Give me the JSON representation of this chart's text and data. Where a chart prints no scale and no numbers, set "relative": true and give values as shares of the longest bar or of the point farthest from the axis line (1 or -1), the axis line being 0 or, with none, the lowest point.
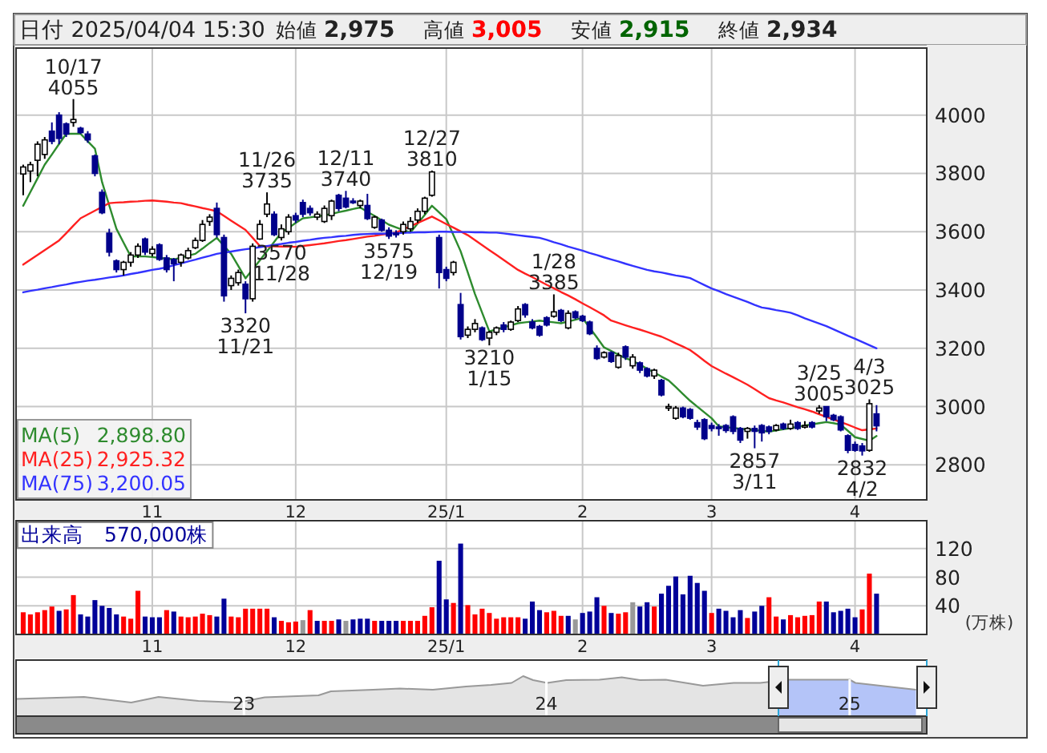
{
  "chart_data": [
    {
      "type": "candlestick",
      "title": "日付 2025/04/04 15:30",
      "categories": [
        null,
        null,
        null,
        null,
        null,
        null,
        null,
        null,
        null,
        null,
        null,
        null,
        null,
        null,
        null,
        null,
        null,
        null,
        "11",
        null,
        null,
        null,
        null,
        null,
        null,
        null,
        null,
        null,
        null,
        null,
        null,
        null,
        null,
        null,
        null,
        null,
        null,
        null,
        "12",
        null,
        null,
        null,
        null,
        null,
        null,
        null,
        null,
        null,
        null,
        null,
        null,
        null,
        null,
        null,
        null,
        null,
        null,
        null,
        null,
        "25/1",
        null,
        null,
        null,
        null,
        null,
        null,
        null,
        null,
        null,
        null,
        null,
        null,
        null,
        null,
        null,
        null,
        null,
        null,
        "2",
        null,
        null,
        null,
        null,
        null,
        null,
        null,
        null,
        null,
        null,
        null,
        null,
        null,
        null,
        null,
        null,
        null,
        "3",
        null,
        null,
        null,
        null,
        null,
        null,
        null,
        null,
        null,
        null,
        null,
        null,
        null,
        null,
        null,
        null,
        null,
        null,
        null,
        "4",
        null,
        null,
        null
      ],
      "ohlc": [
        [
          3798,
          3830,
          3725,
          3822
        ],
        [
          3808,
          3840,
          3770,
          3830
        ],
        [
          3845,
          3910,
          3790,
          3900
        ],
        [
          3865,
          3925,
          3850,
          3915
        ],
        [
          3945,
          3975,
          3900,
          3910
        ],
        [
          4000,
          4010,
          3900,
          3920
        ],
        [
          3970,
          3975,
          3925,
          3935
        ],
        [
          3975,
          4055,
          3960,
          3985
        ],
        [
          3955,
          3960,
          3935,
          3940
        ],
        [
          3935,
          3945,
          3905,
          3915
        ],
        [
          3860,
          3865,
          3790,
          3800
        ],
        [
          3735,
          3745,
          3660,
          3665
        ],
        [
          3595,
          3610,
          3515,
          3530
        ],
        [
          3500,
          3505,
          3460,
          3470
        ],
        [
          3470,
          3500,
          3450,
          3495
        ],
        [
          3495,
          3530,
          3480,
          3520
        ],
        [
          3520,
          3560,
          3510,
          3550
        ],
        [
          3575,
          3580,
          3520,
          3530
        ],
        [
          3525,
          3550,
          3515,
          3540
        ],
        [
          3555,
          3560,
          3500,
          3505
        ],
        [
          3510,
          3520,
          3460,
          3470
        ],
        [
          3505,
          3510,
          3430,
          3490
        ],
        [
          3495,
          3525,
          3480,
          3520
        ],
        [
          3510,
          3545,
          3505,
          3535
        ],
        [
          3545,
          3580,
          3540,
          3570
        ],
        [
          3570,
          3640,
          3565,
          3625
        ],
        [
          3635,
          3660,
          3620,
          3650
        ],
        [
          3680,
          3700,
          3580,
          3590
        ],
        [
          3580,
          3590,
          3360,
          3380
        ],
        [
          3415,
          3450,
          3400,
          3440
        ],
        [
          3425,
          3470,
          3415,
          3460
        ],
        [
          3420,
          3430,
          3320,
          3370
        ],
        [
          3370,
          3560,
          3360,
          3550
        ],
        [
          3575,
          3640,
          3572,
          3625
        ],
        [
          3660,
          3735,
          3650,
          3695
        ],
        [
          3660,
          3670,
          3585,
          3590
        ],
        [
          3580,
          3625,
          3570,
          3610
        ],
        [
          3600,
          3660,
          3590,
          3650
        ],
        [
          3655,
          3665,
          3630,
          3640
        ],
        [
          3700,
          3710,
          3650,
          3660
        ],
        [
          3680,
          3690,
          3655,
          3665
        ],
        [
          3650,
          3670,
          3640,
          3660
        ],
        [
          3635,
          3690,
          3630,
          3680
        ],
        [
          3655,
          3710,
          3640,
          3705
        ],
        [
          3725,
          3730,
          3670,
          3680
        ],
        [
          3715,
          3740,
          3680,
          3685
        ],
        [
          3705,
          3715,
          3695,
          3700
        ],
        [
          3690,
          3710,
          3680,
          3705
        ],
        [
          3690,
          3730,
          3640,
          3645
        ],
        [
          3615,
          3655,
          3610,
          3650
        ],
        [
          3640,
          3645,
          3600,
          3605
        ],
        [
          3605,
          3615,
          3575,
          3585
        ],
        [
          3595,
          3605,
          3580,
          3590
        ],
        [
          3600,
          3635,
          3590,
          3625
        ],
        [
          3610,
          3650,
          3600,
          3635
        ],
        [
          3640,
          3680,
          3630,
          3670
        ],
        [
          3670,
          3720,
          3660,
          3715
        ],
        [
          3725,
          3810,
          3720,
          3805
        ],
        [
          3580,
          3590,
          3405,
          3460
        ],
        [
          3470,
          3480,
          3430,
          3440
        ],
        [
          3460,
          3500,
          3450,
          3495
        ],
        [
          3350,
          3390,
          3230,
          3240
        ],
        [
          3245,
          3275,
          3235,
          3265
        ],
        [
          3265,
          3300,
          3255,
          3285
        ],
        [
          3270,
          3275,
          3225,
          3230
        ],
        [
          3235,
          3260,
          3210,
          3255
        ],
        [
          3255,
          3275,
          3245,
          3270
        ],
        [
          3280,
          3290,
          3255,
          3265
        ],
        [
          3265,
          3295,
          3260,
          3290
        ],
        [
          3295,
          3345,
          3290,
          3335
        ],
        [
          3350,
          3355,
          3305,
          3315
        ],
        [
          3290,
          3300,
          3265,
          3270
        ],
        [
          3275,
          3280,
          3240,
          3245
        ],
        [
          3305,
          3310,
          3275,
          3280
        ],
        [
          3310,
          3385,
          3305,
          3325
        ],
        [
          3330,
          3335,
          3290,
          3295
        ],
        [
          3270,
          3330,
          3265,
          3320
        ],
        [
          3325,
          3330,
          3300,
          3305
        ],
        [
          3310,
          3315,
          3290,
          3295
        ],
        [
          3290,
          3295,
          3245,
          3250
        ],
        [
          3200,
          3210,
          3160,
          3165
        ],
        [
          3170,
          3190,
          3165,
          3185
        ],
        [
          3185,
          3190,
          3150,
          3155
        ],
        [
          3135,
          3185,
          3130,
          3175
        ],
        [
          3205,
          3210,
          3160,
          3170
        ],
        [
          3140,
          3180,
          3130,
          3170
        ],
        [
          3150,
          3155,
          3115,
          3125
        ],
        [
          3130,
          3135,
          3100,
          3105
        ],
        [
          3105,
          3130,
          3095,
          3125
        ],
        [
          3090,
          3095,
          3035,
          3040
        ],
        [
          2995,
          3010,
          2985,
          3000
        ],
        [
          2960,
          3002,
          2955,
          2995
        ],
        [
          2995,
          3000,
          2960,
          2965
        ],
        [
          2990,
          2995,
          2955,
          2960
        ],
        [
          2945,
          2955,
          2920,
          2930
        ],
        [
          2955,
          2960,
          2885,
          2890
        ],
        [
          2935,
          2945,
          2915,
          2925
        ],
        [
          2930,
          2940,
          2900,
          2928
        ],
        [
          2935,
          2940,
          2910,
          2918
        ],
        [
          2965,
          2970,
          2905,
          2915
        ],
        [
          2925,
          2930,
          2875,
          2885
        ],
        [
          2915,
          2930,
          2890,
          2925
        ],
        [
          2925,
          2935,
          2857,
          2915
        ],
        [
          2935,
          2940,
          2880,
          2910
        ],
        [
          2930,
          2935,
          2905,
          2915
        ],
        [
          2920,
          2940,
          2915,
          2935
        ],
        [
          2940,
          2945,
          2920,
          2925
        ],
        [
          2925,
          2955,
          2920,
          2940
        ],
        [
          2945,
          2950,
          2920,
          2925
        ],
        [
          2935,
          2950,
          2925,
          2935
        ],
        [
          2945,
          2950,
          2925,
          2930
        ],
        [
          2985,
          3005,
          2975,
          2995
        ],
        [
          3000,
          3000,
          2950,
          2965
        ],
        [
          2970,
          2975,
          2950,
          2955
        ],
        [
          2965,
          2970,
          2915,
          2920
        ],
        [
          2900,
          2905,
          2840,
          2850
        ],
        [
          2870,
          2880,
          2845,
          2850
        ],
        [
          2865,
          2875,
          2832,
          2848
        ],
        [
          2850,
          3025,
          2845,
          3010
        ],
        [
          2975,
          3005,
          2915,
          2934
        ]
      ],
      "series": [
        {
          "name": "MA(5)",
          "type": "line",
          "color": "#2e8b2e",
          "values": [
            3689,
            3736,
            3783,
            3830,
            3865,
            3901,
            3936,
            3936,
            3936,
            3910,
            3885,
            3770,
            3690,
            3610,
            3562,
            3515,
            3515,
            3515,
            3513,
            3510,
            3508,
            3505,
            3511,
            3518,
            3524,
            3542,
            3561,
            3579,
            3551,
            3524,
            3482,
            3440,
            3471,
            3502,
            3533,
            3565,
            3597,
            3613,
            3630,
            3646,
            3649,
            3653,
            3656,
            3661,
            3667,
            3672,
            3678,
            3683,
            3668,
            3654,
            3639,
            3624,
            3615,
            3606,
            3597,
            3628,
            3658,
            3689,
            3666,
            3643,
            3588,
            3533,
            3460,
            3386,
            3322,
            3258,
            3265,
            3272,
            3279,
            3286,
            3289,
            3292,
            3295,
            3292,
            3289,
            3286,
            3292,
            3298,
            3304,
            3270,
            3237,
            3203,
            3191,
            3178,
            3166,
            3157,
            3144,
            3130,
            3117,
            3103,
            3090,
            3067,
            3043,
            3020,
            3000,
            2980,
            2960,
            2932,
            2929,
            2927,
            2924,
            2922,
            2919,
            2917,
            2914,
            2918,
            2922,
            2926,
            2931,
            2935,
            2939,
            2943,
            2947,
            2943,
            2938,
            2917,
            2895,
            2889,
            2883,
            2899
          ]
        },
        {
          "name": "MA(25)",
          "type": "line",
          "color": "#ff2020",
          "values": [
            3487,
            3504,
            3520,
            3537,
            3553,
            3570,
            3595,
            3621,
            3646,
            3659,
            3672,
            3685,
            3698,
            3700,
            3701,
            3703,
            3704,
            3706,
            3707,
            3705,
            3703,
            3700,
            3698,
            3692,
            3687,
            3681,
            3676,
            3670,
            3654,
            3638,
            3622,
            3606,
            3579,
            3551,
            3550,
            3550,
            3549,
            3549,
            3548,
            3551,
            3554,
            3557,
            3560,
            3564,
            3568,
            3571,
            3575,
            3579,
            3583,
            3586,
            3590,
            3593,
            3597,
            3608,
            3619,
            3630,
            3641,
            3652,
            3639,
            3626,
            3614,
            3601,
            3588,
            3571,
            3554,
            3537,
            3520,
            3503,
            3486,
            3469,
            3456,
            3444,
            3431,
            3418,
            3406,
            3393,
            3381,
            3368,
            3354,
            3341,
            3327,
            3313,
            3295,
            3287,
            3279,
            3271,
            3264,
            3256,
            3248,
            3240,
            3229,
            3217,
            3206,
            3194,
            3176,
            3157,
            3139,
            3126,
            3113,
            3101,
            3088,
            3075,
            3060,
            3044,
            3029,
            3021,
            3014,
            3006,
            2998,
            2991,
            2983,
            2974,
            2965,
            2956,
            2947,
            2938,
            2928,
            2919,
            2922,
            2925
          ]
        },
        {
          "name": "MA(75)",
          "type": "line",
          "color": "#3333ff",
          "values": [
            3392,
            3397,
            3401,
            3406,
            3410,
            3415,
            3419,
            3424,
            3428,
            3432,
            3435,
            3439,
            3443,
            3446,
            3450,
            3455,
            3459,
            3464,
            3469,
            3473,
            3478,
            3485,
            3491,
            3498,
            3504,
            3511,
            3517,
            3524,
            3528,
            3532,
            3536,
            3540,
            3543,
            3547,
            3551,
            3555,
            3558,
            3562,
            3565,
            3569,
            3572,
            3576,
            3579,
            3581,
            3584,
            3586,
            3589,
            3591,
            3592,
            3593,
            3593,
            3594,
            3595,
            3596,
            3597,
            3598,
            3598,
            3599,
            3600,
            3600,
            3599,
            3599,
            3599,
            3598,
            3598,
            3597,
            3597,
            3594,
            3591,
            3588,
            3585,
            3582,
            3579,
            3572,
            3564,
            3557,
            3549,
            3542,
            3535,
            3527,
            3520,
            3512,
            3505,
            3498,
            3490,
            3483,
            3476,
            3469,
            3464,
            3460,
            3455,
            3450,
            3446,
            3441,
            3429,
            3417,
            3405,
            3396,
            3386,
            3377,
            3368,
            3359,
            3349,
            3340,
            3336,
            3331,
            3327,
            3322,
            3313,
            3303,
            3294,
            3285,
            3276,
            3265,
            3254,
            3243,
            3233,
            3222,
            3211,
            3200
          ]
        }
      ],
      "ylim": [
        2680,
        4230
      ],
      "yticks": [
        2800,
        3000,
        3200,
        3400,
        3600,
        3800,
        4000
      ],
      "grid": true,
      "legend": "bottom left",
      "annotations": [
        "始値 2,975",
        "高値 3,005",
        "安値 2,915",
        "終値 2,934",
        "2,898.80",
        "2,925.32",
        "3,200.05",
        {
          "text": "10/17\n4055",
          "y": 4055
        },
        {
          "text": "3320\n11/21",
          "y": 3320
        },
        {
          "text": "11/26\n3735",
          "y": 3735
        },
        {
          "text": "3570\n11/28",
          "y": 3570
        },
        {
          "text": "12/11\n3740",
          "y": 3740
        },
        {
          "text": "3575\n12/19",
          "y": 3575
        },
        {
          "text": "12/27\n3810",
          "y": 3810
        },
        {
          "text": "3210\n1/15",
          "y": 3210
        },
        {
          "text": "1/28\n3385",
          "y": 3385
        },
        {
          "text": "2857\n3/11",
          "y": 2857
        },
        {
          "text": "3/25\n3005",
          "y": 3005
        },
        {
          "text": "4/3\n3025",
          "y": 3025
        },
        {
          "text": "2832\n4/2",
          "y": 2832
        }
      ]
    },
    {
      "type": "bar",
      "title": "出来高　570,000株",
      "ylabel": "(万株)",
      "categories": [
        null,
        null,
        null,
        null,
        null,
        null,
        null,
        null,
        null,
        null,
        null,
        null,
        null,
        null,
        null,
        null,
        null,
        null,
        "11",
        null,
        null,
        null,
        null,
        null,
        null,
        null,
        null,
        null,
        null,
        null,
        null,
        null,
        null,
        null,
        null,
        null,
        null,
        null,
        "12",
        null,
        null,
        null,
        null,
        null,
        null,
        null,
        null,
        null,
        null,
        null,
        null,
        null,
        null,
        null,
        null,
        null,
        null,
        null,
        null,
        "25/1",
        null,
        null,
        null,
        null,
        null,
        null,
        null,
        null,
        null,
        null,
        null,
        null,
        null,
        null,
        null,
        null,
        null,
        null,
        "2",
        null,
        null,
        null,
        null,
        null,
        null,
        null,
        null,
        null,
        null,
        null,
        null,
        null,
        null,
        null,
        null,
        null,
        "3",
        null,
        null,
        null,
        null,
        null,
        null,
        null,
        null,
        null,
        null,
        null,
        null,
        null,
        null,
        null,
        null,
        null,
        null,
        null,
        "4",
        null,
        null,
        null
      ],
      "values": [
        31,
        28,
        31,
        34,
        39,
        33,
        35,
        55,
        28,
        25,
        48,
        40,
        37,
        28,
        25,
        22,
        61,
        25,
        24,
        24,
        34,
        32,
        25,
        24,
        25,
        29,
        27,
        25,
        50,
        25,
        24,
        36,
        36,
        36,
        36,
        24,
        19,
        17,
        18,
        20,
        34,
        19,
        19,
        19,
        21,
        19,
        21,
        22,
        22,
        19,
        19,
        19,
        19,
        19,
        19,
        19,
        26,
        38,
        103,
        49,
        44,
        127,
        41,
        28,
        36,
        30,
        22,
        24,
        24,
        24,
        22,
        46,
        34,
        31,
        33,
        26,
        26,
        21,
        30,
        32,
        52,
        40,
        30,
        29,
        31,
        45,
        39,
        45,
        39,
        57,
        68,
        81,
        56,
        82,
        72,
        61,
        30,
        36,
        33,
        24,
        34,
        23,
        32,
        40,
        52,
        25,
        21,
        27,
        24,
        26,
        27,
        46,
        46,
        31,
        33,
        36,
        24,
        35,
        85,
        57
      ],
      "colors": [
        "#ff0000",
        "#ff0000",
        "#ff0000",
        "#ff0000",
        "#ff0000",
        "#000099",
        "#ff0000",
        "#ff0000",
        "#000099",
        "#000099",
        "#000099",
        "#000099",
        "#000099",
        "#000099",
        "#ff0000",
        "#ff0000",
        "#ff0000",
        "#000099",
        "#000099",
        "#000099",
        "#ff0000",
        "#000099",
        "#ff0000",
        "#ff0000",
        "#ff0000",
        "#ff0000",
        "#ff0000",
        "#000099",
        "#000099",
        "#ff0000",
        "#ff0000",
        "#ff0000",
        "#ff0000",
        "#ff0000",
        "#ff0000",
        "#000099",
        "#ff0000",
        "#ff0000",
        "#ff0000",
        "#999999",
        "#ff0000",
        "#000099",
        "#ff0000",
        "#ff0000",
        "#000099",
        "#999999",
        "#000099",
        "#000099",
        "#000099",
        "#ff0000",
        "#000099",
        "#000099",
        "#000099",
        "#ff0000",
        "#ff0000",
        "#ff0000",
        "#ff0000",
        "#ff0000",
        "#000099",
        "#000099",
        "#ff0000",
        "#000099",
        "#ff0000",
        "#ff0000",
        "#ff0000",
        "#ff0000",
        "#ff0000",
        "#ff0000",
        "#ff0000",
        "#ff0000",
        "#000099",
        "#000099",
        "#000099",
        "#ff0000",
        "#ff0000",
        "#ff0000",
        "#000099",
        "#999999",
        "#000099",
        "#000099",
        "#000099",
        "#ff0000",
        "#000099",
        "#ff0000",
        "#ff0000",
        "#999999",
        "#000099",
        "#000099",
        "#ff0000",
        "#000099",
        "#000099",
        "#000099",
        "#000099",
        "#000099",
        "#000099",
        "#000099",
        "#ff0000",
        "#000099",
        "#000099",
        "#000099",
        "#000099",
        "#ff0000",
        "#000099",
        "#000099",
        "#ff0000",
        "#ff0000",
        "#000099",
        "#ff0000",
        "#ff0000",
        "#ff0000",
        "#ff0000",
        "#ff0000",
        "#000099",
        "#000099",
        "#000099",
        "#000099",
        "#000099",
        "#ff0000",
        "#ff0000",
        "#000099"
      ],
      "ylim": [
        0,
        159
      ],
      "yticks": [
        40,
        80,
        120
      ],
      "grid": true
    },
    {
      "type": "area",
      "relative": true,
      "color": "#999999",
      "tick_labels": "x",
      "grid": "x",
      "x": [
        "2022-04-01",
        "2022-06-22",
        "2022-08-18",
        "2022-09-20",
        "2022-11-07",
        "2022-12-25",
        "2023-01-26",
        "2023-04-01",
        "2023-04-16",
        "2023-06-06",
        "2023-07-08",
        "2023-08-17",
        "2023-09-26",
        "2023-10-26",
        "2023-11-20",
        "2023-12-04",
        "2023-12-16",
        "2024-01-02",
        "2024-01-25",
        "2024-03-05",
        "2024-04-01",
        "2024-04-23",
        "2024-05-24",
        "2024-07-08",
        "2024-08-14",
        "2024-09-15",
        "2024-10-19",
        "2025-01-01",
        "2025-01-08",
        "2025-03-22"
      ],
      "values": [
        0.43,
        0.48,
        0.34,
        0.48,
        0.38,
        0.34,
        0.47,
        0.52,
        0.62,
        0.66,
        0.69,
        0.66,
        0.74,
        0.78,
        0.83,
        1,
        0.9,
        0.83,
        0.9,
        0.91,
        0.97,
        0.9,
        0.91,
        0.76,
        0.83,
        0.83,
        0.91,
        0.91,
        0.83,
        0.66
      ],
      "xlim": [
        "2022-04-01",
        "2025-04-04"
      ],
      "xticks": [
        {
          "value": "2023-01-01",
          "label": "23"
        },
        {
          "value": "2024-01-01",
          "label": "24"
        },
        {
          "value": "2025-01-01",
          "label": "25"
        }
      ],
      "bands": [
        {
          "axis": "x",
          "from": "2024-10-07",
          "to": "2025-04-04",
          "color": "#b4c4f8"
        }
      ]
    }
  ]
}
